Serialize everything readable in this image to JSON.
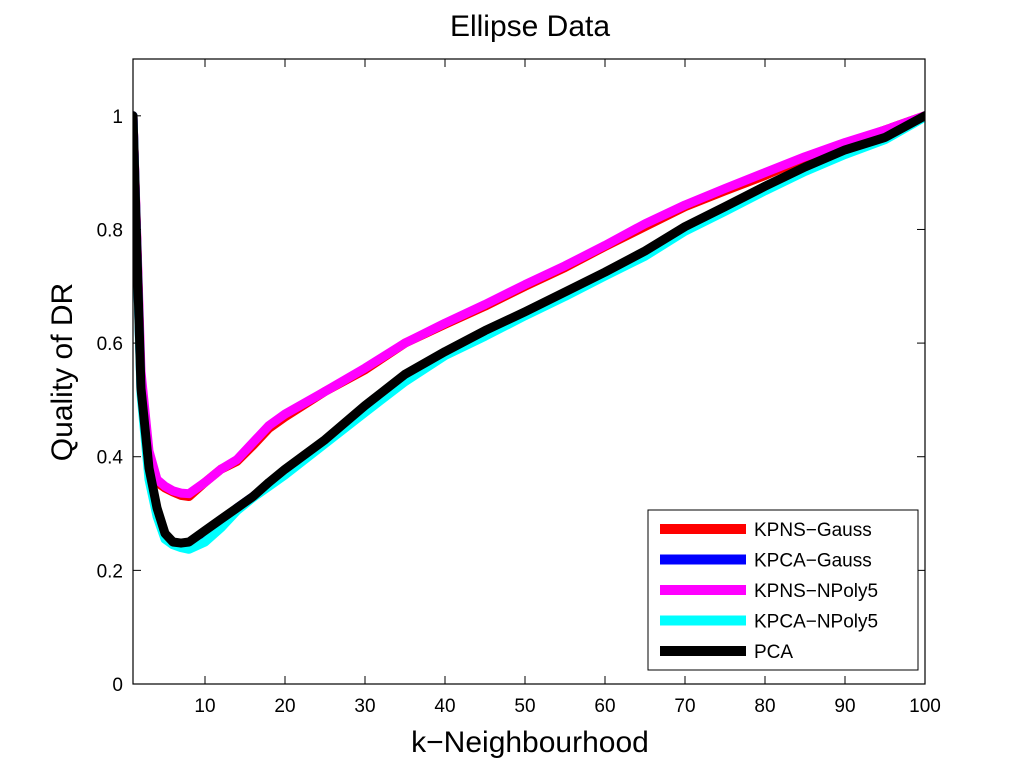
{
  "chart_data": {
    "type": "line",
    "title": "Ellipse Data",
    "xlabel": "k−Neighbourhood",
    "ylabel": "Quality of DR",
    "xlim": [
      1,
      100
    ],
    "ylim": [
      0,
      1.1
    ],
    "xticks": [
      10,
      20,
      30,
      40,
      50,
      60,
      70,
      80,
      90,
      100
    ],
    "yticks": [
      0,
      0.2,
      0.4,
      0.6,
      0.8,
      1
    ],
    "ytick_labels": [
      "0",
      "0.2",
      "0.4",
      "0.6",
      "0.8",
      "1"
    ],
    "grid": false,
    "legend": "bottom-right",
    "series": [
      {
        "name": "KPNS−Gauss",
        "color": "#ff0000",
        "x": [
          1,
          2,
          3,
          4,
          5,
          6,
          7,
          8,
          10,
          12,
          14,
          16,
          18,
          20,
          25,
          30,
          35,
          40,
          45,
          50,
          55,
          60,
          65,
          70,
          75,
          80,
          85,
          90,
          95,
          100
        ],
        "y": [
          1.0,
          0.53,
          0.4,
          0.355,
          0.345,
          0.338,
          0.332,
          0.33,
          0.355,
          0.378,
          0.392,
          0.42,
          0.45,
          0.47,
          0.515,
          0.553,
          0.6,
          0.633,
          0.665,
          0.7,
          0.733,
          0.77,
          0.805,
          0.84,
          0.868,
          0.895,
          0.925,
          0.95,
          0.975,
          1.0
        ]
      },
      {
        "name": "KPCA−Gauss",
        "color": "#0000ff",
        "x": [
          1,
          2,
          3,
          4,
          5,
          6,
          7,
          8,
          10,
          12,
          14,
          16,
          18,
          20,
          25,
          30,
          35,
          40,
          45,
          50,
          55,
          60,
          65,
          70,
          75,
          80,
          85,
          90,
          95,
          100
        ],
        "y": [
          1.0,
          0.52,
          0.37,
          0.3,
          0.26,
          0.25,
          0.245,
          0.24,
          0.255,
          0.28,
          0.31,
          0.33,
          0.35,
          0.37,
          0.425,
          0.48,
          0.535,
          0.58,
          0.615,
          0.65,
          0.685,
          0.72,
          0.755,
          0.8,
          0.835,
          0.87,
          0.905,
          0.935,
          0.96,
          1.0
        ]
      },
      {
        "name": "KPNS−NPoly5",
        "color": "#ff00ff",
        "x": [
          1,
          2,
          3,
          4,
          5,
          6,
          7,
          8,
          10,
          12,
          14,
          16,
          18,
          20,
          25,
          30,
          35,
          40,
          45,
          50,
          55,
          60,
          65,
          70,
          75,
          80,
          85,
          90,
          95,
          100
        ],
        "y": [
          1.0,
          0.55,
          0.41,
          0.36,
          0.348,
          0.34,
          0.336,
          0.335,
          0.355,
          0.378,
          0.395,
          0.425,
          0.455,
          0.475,
          0.515,
          0.556,
          0.6,
          0.635,
          0.668,
          0.703,
          0.736,
          0.772,
          0.81,
          0.843,
          0.872,
          0.9,
          0.928,
          0.953,
          0.975,
          1.0
        ]
      },
      {
        "name": "KPCA−NPoly5",
        "color": "#00ffff",
        "x": [
          1,
          2,
          3,
          4,
          5,
          6,
          7,
          8,
          10,
          12,
          14,
          16,
          18,
          20,
          25,
          30,
          35,
          40,
          45,
          50,
          55,
          60,
          65,
          70,
          75,
          80,
          85,
          90,
          95,
          100
        ],
        "y": [
          1.0,
          0.51,
          0.36,
          0.295,
          0.255,
          0.245,
          0.24,
          0.237,
          0.25,
          0.275,
          0.305,
          0.328,
          0.348,
          0.368,
          0.423,
          0.478,
          0.532,
          0.578,
          0.612,
          0.648,
          0.682,
          0.718,
          0.753,
          0.797,
          0.832,
          0.868,
          0.902,
          0.932,
          0.958,
          0.998
        ]
      },
      {
        "name": "PCA",
        "color": "#000000",
        "x": [
          1,
          2,
          3,
          4,
          5,
          6,
          7,
          8,
          10,
          12,
          14,
          16,
          18,
          20,
          25,
          30,
          35,
          40,
          45,
          50,
          55,
          60,
          65,
          70,
          75,
          80,
          85,
          90,
          95,
          100
        ],
        "y": [
          1.0,
          0.52,
          0.38,
          0.31,
          0.265,
          0.25,
          0.248,
          0.25,
          0.27,
          0.29,
          0.31,
          0.33,
          0.355,
          0.378,
          0.43,
          0.49,
          0.545,
          0.585,
          0.622,
          0.655,
          0.69,
          0.725,
          0.762,
          0.805,
          0.84,
          0.876,
          0.91,
          0.94,
          0.962,
          1.0
        ]
      }
    ]
  }
}
